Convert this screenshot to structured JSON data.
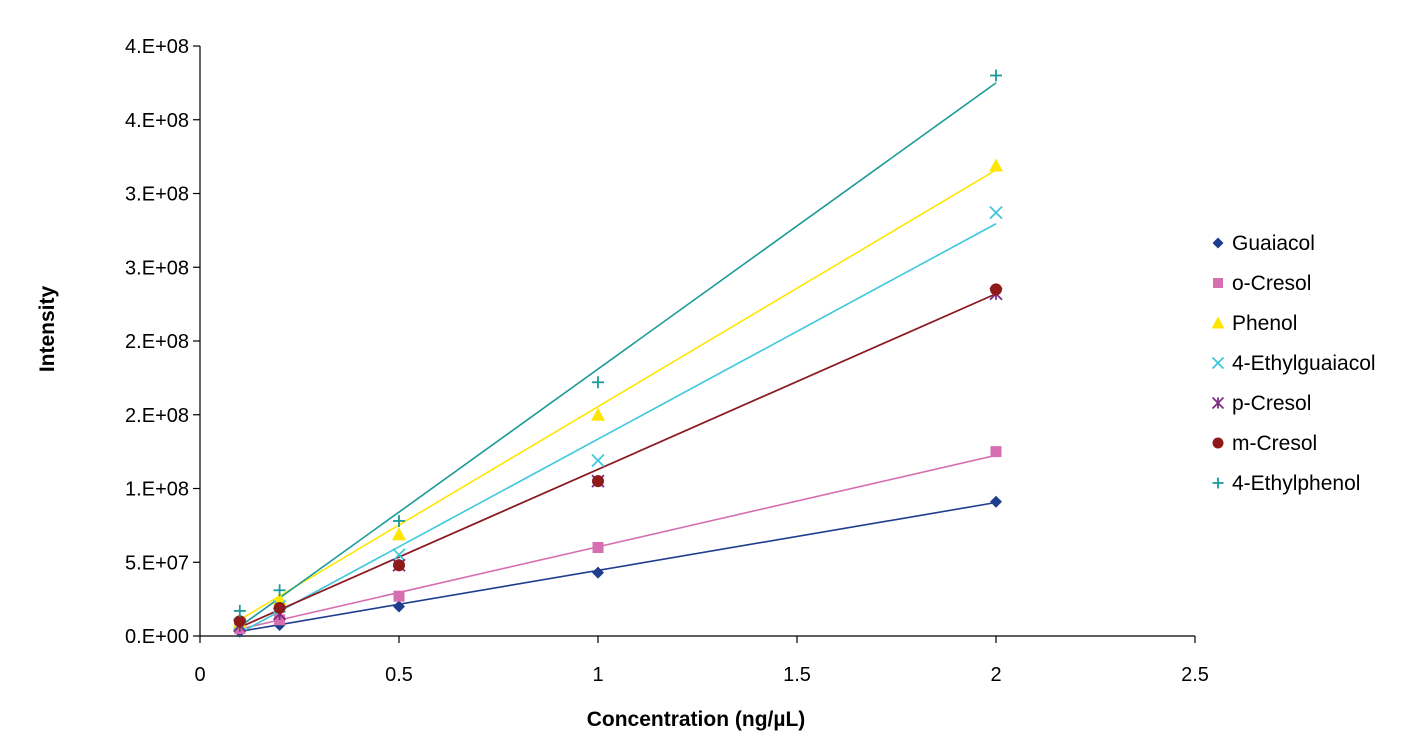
{
  "chart_data": {
    "type": "scatter",
    "title": "",
    "xlabel": "Concentration (ng/µL)",
    "ylabel": "Intensity",
    "xlim": [
      0,
      2.5
    ],
    "ylim": [
      0,
      400000000
    ],
    "x_ticks": [
      0,
      0.5,
      1,
      1.5,
      2,
      2.5
    ],
    "x_tick_labels": [
      "0",
      "0.5",
      "1",
      "1.5",
      "2",
      "2.5"
    ],
    "y_ticks": [
      0,
      50000000,
      100000000,
      150000000,
      200000000,
      250000000,
      300000000,
      350000000,
      400000000
    ],
    "y_tick_labels": [
      "0.E+00",
      "5.E+07",
      "1.E+08",
      "2.E+08",
      "2.E+08",
      "3.E+08",
      "3.E+08",
      "4.E+08",
      "4.E+08"
    ],
    "grid": false,
    "legend_position": "right",
    "trendlines": "linear",
    "x": [
      0.1,
      0.2,
      0.5,
      1,
      2
    ],
    "series": [
      {
        "name": "Guaiacol",
        "marker": "diamond",
        "color": "#1f3d8f",
        "values": [
          3000000,
          7500000,
          20000000,
          43000000,
          91000000
        ],
        "fit": {
          "slope": 46000000,
          "intercept": -1500000
        }
      },
      {
        "name": "o-Cresol",
        "marker": "square",
        "color": "#d66fb0",
        "values": [
          5000000,
          11000000,
          27000000,
          60000000,
          125000000
        ],
        "fit": {
          "slope": 62000000,
          "intercept": -1500000
        }
      },
      {
        "name": "Phenol",
        "marker": "triangle",
        "color": "#ffe600",
        "values": [
          9000000,
          25000000,
          69000000,
          150000000,
          319000000
        ],
        "fit": {
          "slope": 160500000,
          "intercept": -5000000
        }
      },
      {
        "name": "4-Ethylguaiacol",
        "marker": "x",
        "color": "#3cc8dc",
        "values": [
          8000000,
          20000000,
          55000000,
          119000000,
          287000000
        ],
        "fit": {
          "slope": 146000000,
          "intercept": -12500000
        }
      },
      {
        "name": "p-Cresol",
        "marker": "asterisk",
        "color": "#7b2c82",
        "values": [
          7000000,
          15000000,
          48000000,
          105000000,
          232000000
        ],
        "fit": {
          "slope": 119000000,
          "intercept": -6000000
        }
      },
      {
        "name": "m-Cresol",
        "marker": "circle",
        "color": "#8e1a1a",
        "values": [
          10000000,
          19000000,
          48000000,
          105000000,
          235000000
        ],
        "fit": {
          "slope": 119000000,
          "intercept": -6000000
        }
      },
      {
        "name": "4-Ethylphenol",
        "marker": "plus",
        "color": "#1a9a9a",
        "values": [
          17000000,
          31000000,
          78000000,
          172000000,
          380000000
        ],
        "fit": {
          "slope": 194000000,
          "intercept": -13000000
        }
      }
    ]
  }
}
